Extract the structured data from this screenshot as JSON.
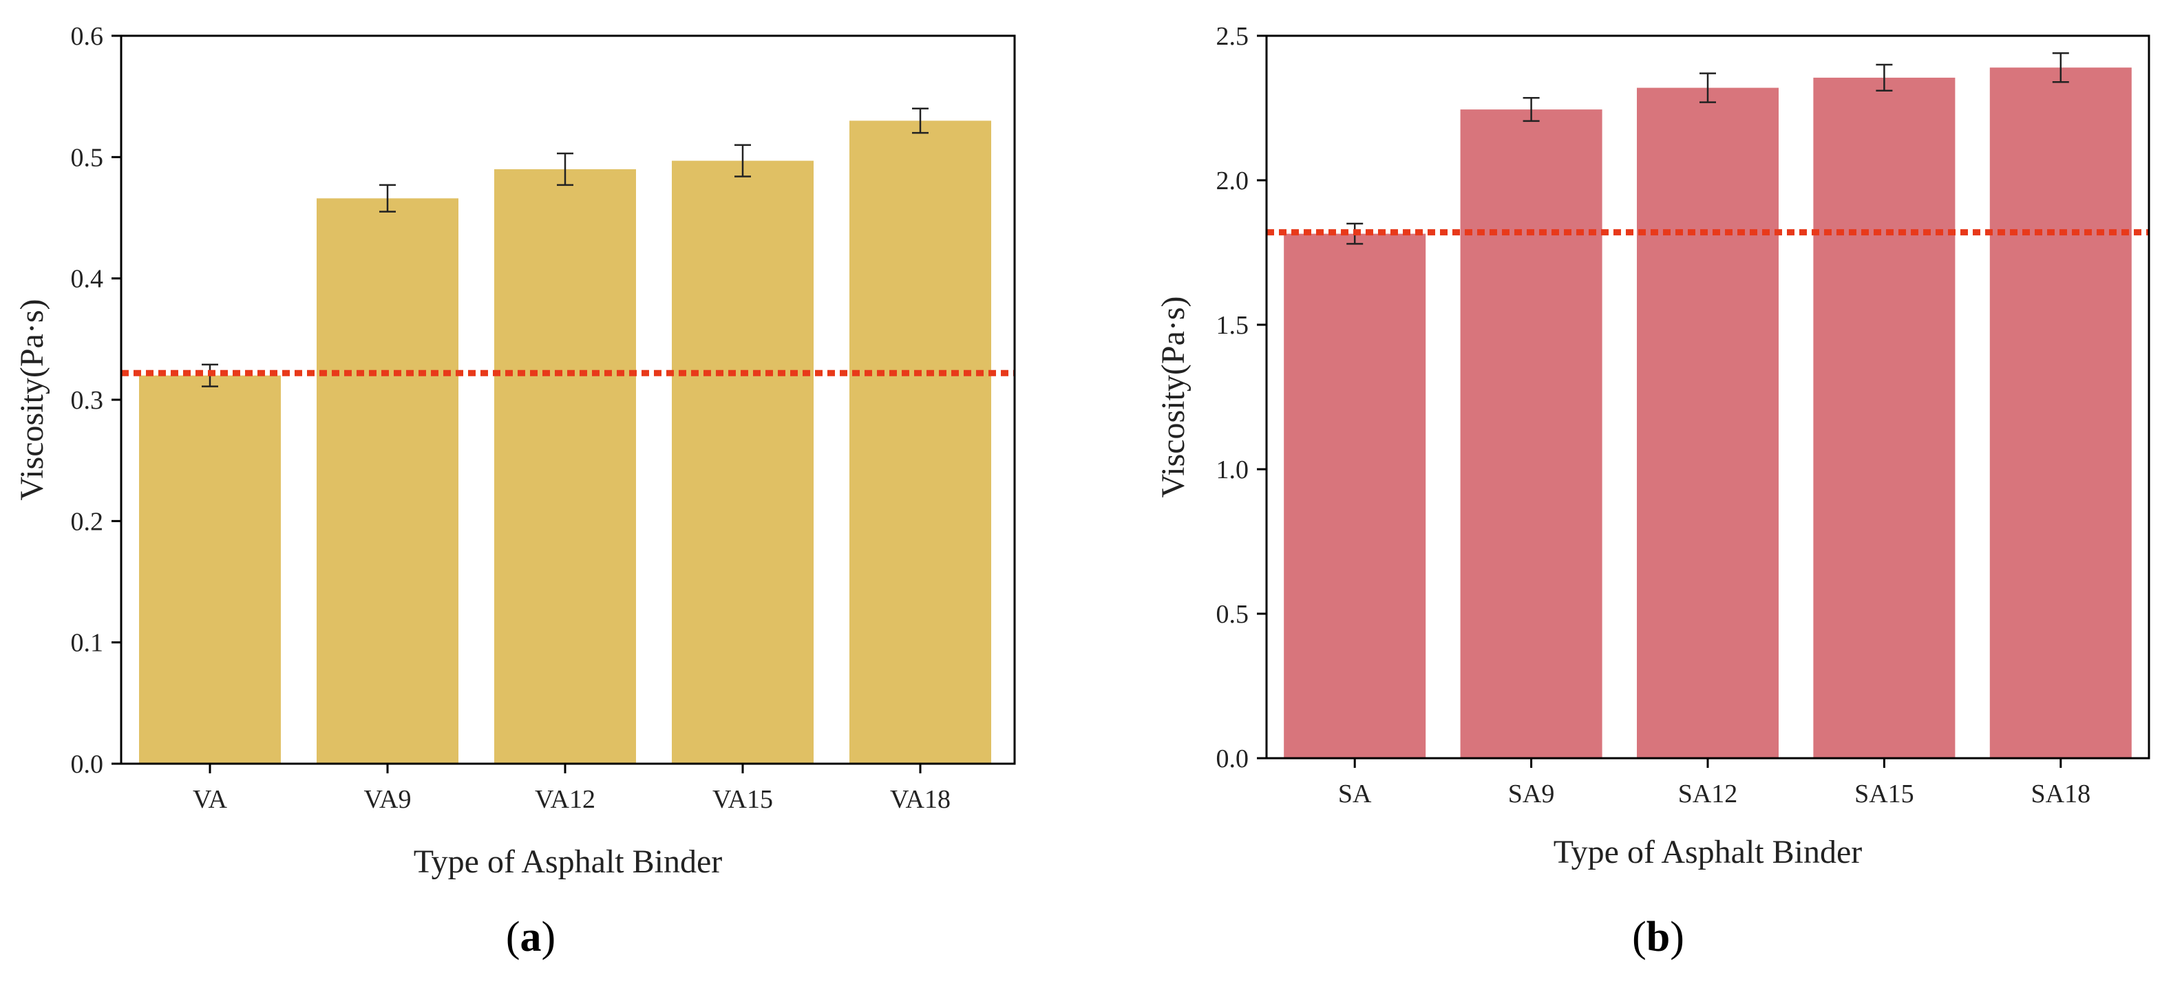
{
  "chart_data": [
    {
      "type": "bar",
      "panel_label": "a",
      "categories": [
        "VA",
        "VA9",
        "VA12",
        "VA15",
        "VA18"
      ],
      "values": [
        0.32,
        0.466,
        0.49,
        0.497,
        0.53
      ],
      "errors": [
        0.009,
        0.011,
        0.013,
        0.013,
        0.01
      ],
      "reference_line": 0.322,
      "xlabel": "Type of Asphalt Binder",
      "ylabel": "Viscosity(Pa·s)",
      "ylim": [
        0,
        0.6
      ],
      "yticks": [
        "0.0",
        "0.1",
        "0.2",
        "0.3",
        "0.4",
        "0.5",
        "0.6"
      ],
      "bar_color": "#e0c064",
      "reference_color": "#e8391a",
      "grid": false
    },
    {
      "type": "bar",
      "panel_label": "b",
      "categories": [
        "SA",
        "SA9",
        "SA12",
        "SA15",
        "SA18"
      ],
      "values": [
        1.815,
        2.245,
        2.32,
        2.355,
        2.39
      ],
      "errors": [
        0.035,
        0.04,
        0.05,
        0.045,
        0.05
      ],
      "reference_line": 1.82,
      "xlabel": "Type of Asphalt Binder",
      "ylabel": "Viscosity(Pa·s)",
      "ylim": [
        0,
        2.5
      ],
      "yticks": [
        "0.0",
        "0.5",
        "1.0",
        "1.5",
        "2.0",
        "2.5"
      ],
      "bar_color": "#d8757c",
      "reference_color": "#e8391a",
      "grid": false
    }
  ]
}
